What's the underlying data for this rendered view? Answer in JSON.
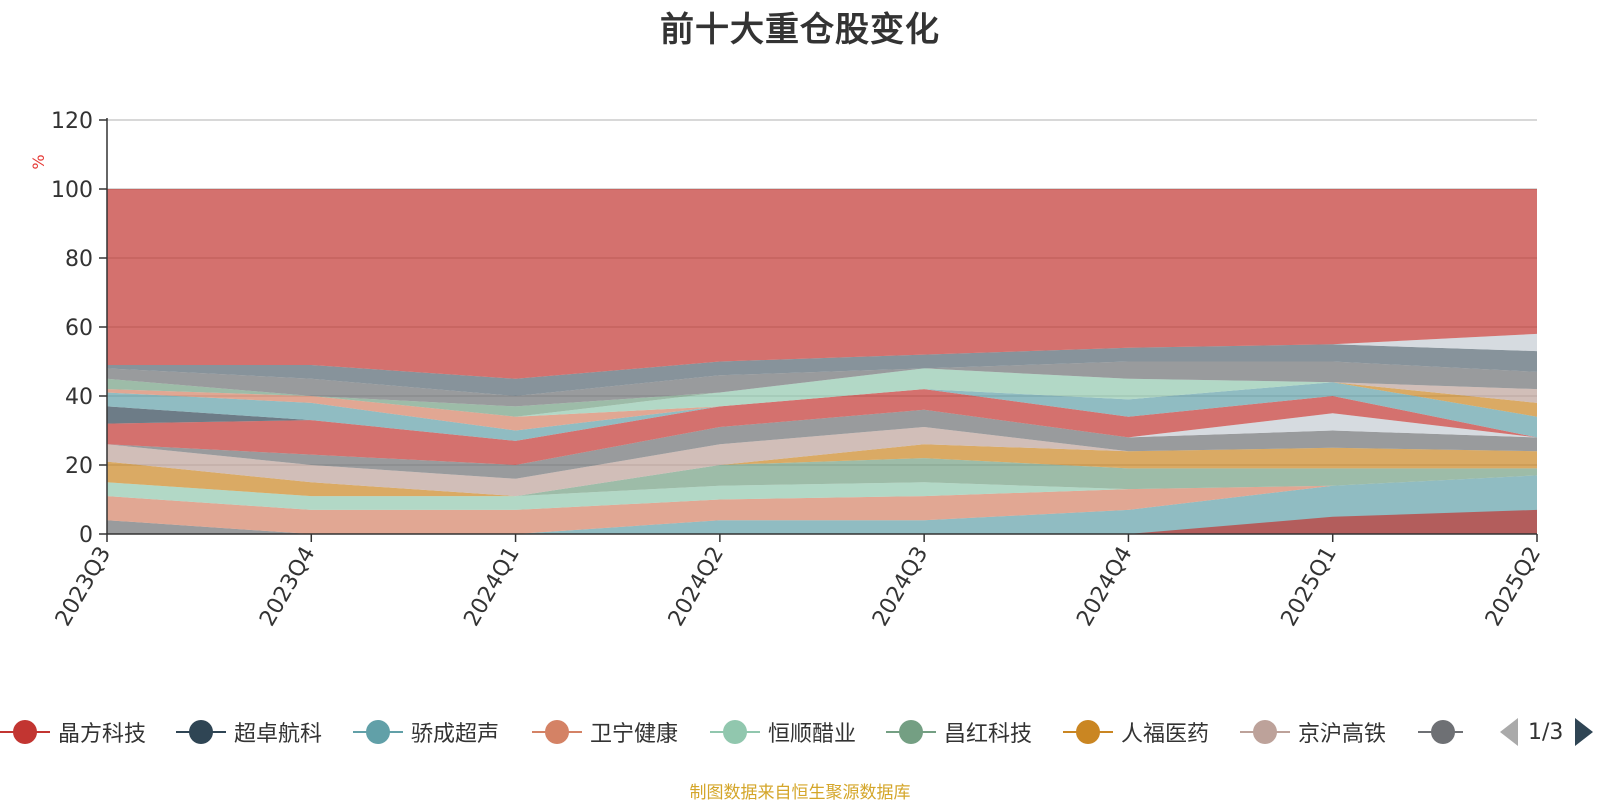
{
  "chart_data": {
    "type": "area",
    "title": "前十大重仓股变化",
    "ylabel": "%",
    "ylim": [
      0,
      120
    ],
    "yticks": [
      0,
      20,
      40,
      60,
      80,
      100,
      120
    ],
    "categories": [
      "2023Q3",
      "2023Q4",
      "2024Q1",
      "2024Q2",
      "2024Q3",
      "2024Q4",
      "2025Q1",
      "2025Q2"
    ],
    "bands": [
      {
        "color": "#6e7074",
        "lower": [
          0,
          0,
          0,
          0,
          0,
          0,
          0,
          0
        ],
        "upper": [
          4,
          0,
          0,
          0,
          0,
          0,
          0,
          0
        ]
      },
      {
        "color": "#61a0a8",
        "lower": [
          0,
          0,
          0,
          0,
          0,
          0,
          0,
          0
        ],
        "upper": [
          0,
          0,
          0,
          4,
          4,
          7,
          14,
          17
        ]
      },
      {
        "color": "#c23531",
        "lower": [
          0,
          0,
          0,
          0,
          0,
          0,
          0,
          0
        ],
        "upper": [
          0,
          0,
          0,
          0,
          0,
          0,
          5,
          7
        ]
      },
      {
        "color": "#d48265",
        "lower": [
          4,
          0,
          0,
          4,
          4,
          7,
          14,
          17
        ],
        "upper": [
          11,
          7,
          7,
          10,
          11,
          13,
          14,
          17
        ]
      },
      {
        "color": "#91c7ae",
        "lower": [
          11,
          7,
          7,
          10,
          11,
          13,
          14,
          17
        ],
        "upper": [
          15,
          11,
          11,
          14,
          15,
          13,
          14,
          17
        ]
      },
      {
        "color": "#749f83",
        "lower": [
          15,
          11,
          11,
          14,
          15,
          13,
          14,
          17
        ],
        "upper": [
          15,
          11,
          11,
          20,
          22,
          19,
          19,
          19
        ]
      },
      {
        "color": "#ca8622",
        "lower": [
          15,
          11,
          11,
          20,
          22,
          19,
          19,
          19
        ],
        "upper": [
          21,
          15,
          11,
          20,
          26,
          24,
          25,
          24
        ]
      },
      {
        "color": "#bda29a",
        "lower": [
          21,
          15,
          11,
          20,
          26,
          24,
          25,
          24
        ],
        "upper": [
          26,
          20,
          16,
          26,
          31,
          24,
          25,
          24
        ]
      },
      {
        "color": "#6e7074",
        "lower": [
          26,
          20,
          16,
          26,
          31,
          24,
          25,
          24
        ],
        "upper": [
          26,
          23,
          20,
          31,
          36,
          28,
          30,
          28
        ]
      },
      {
        "color": "#c4ccd3",
        "lower": [
          26,
          23,
          20,
          31,
          36,
          28,
          30,
          28
        ],
        "upper": [
          26,
          23,
          20,
          31,
          36,
          28,
          35,
          28
        ]
      },
      {
        "color": "#c23531",
        "lower": [
          26,
          23,
          20,
          31,
          36,
          28,
          35,
          28
        ],
        "upper": [
          32,
          33,
          27,
          37,
          42,
          34,
          40,
          28
        ]
      },
      {
        "color": "#2f4554",
        "lower": [
          32,
          33,
          27,
          37,
          42,
          34,
          40,
          28
        ],
        "upper": [
          37,
          33,
          27,
          37,
          42,
          34,
          40,
          28
        ]
      },
      {
        "color": "#61a0a8",
        "lower": [
          37,
          33,
          27,
          37,
          42,
          34,
          40,
          28
        ],
        "upper": [
          41,
          38,
          30,
          37,
          42,
          39,
          44,
          34
        ]
      },
      {
        "color": "#d48265",
        "lower": [
          41,
          38,
          30,
          37,
          42,
          39,
          44,
          34
        ],
        "upper": [
          42,
          40,
          34,
          37,
          42,
          39,
          44,
          34
        ]
      },
      {
        "color": "#91c7ae",
        "lower": [
          42,
          40,
          34,
          37,
          42,
          39,
          44,
          34
        ],
        "upper": [
          42,
          40,
          34,
          41,
          48,
          45,
          44,
          34
        ]
      },
      {
        "color": "#749f83",
        "lower": [
          42,
          40,
          34,
          41,
          48,
          45,
          44,
          34
        ],
        "upper": [
          45,
          40,
          37,
          41,
          48,
          45,
          44,
          34
        ]
      },
      {
        "color": "#ca8622",
        "lower": [
          45,
          40,
          37,
          41,
          48,
          45,
          44,
          34
        ],
        "upper": [
          45,
          40,
          37,
          41,
          48,
          45,
          44,
          38
        ]
      },
      {
        "color": "#bda29a",
        "lower": [
          45,
          40,
          37,
          41,
          48,
          45,
          44,
          38
        ],
        "upper": [
          45,
          40,
          37,
          41,
          48,
          45,
          44,
          42
        ]
      },
      {
        "color": "#6e7074",
        "lower": [
          45,
          40,
          37,
          41,
          48,
          45,
          44,
          42
        ],
        "upper": [
          48,
          45,
          40,
          46,
          48,
          50,
          50,
          47
        ]
      },
      {
        "color": "#546570",
        "lower": [
          48,
          45,
          40,
          46,
          48,
          50,
          50,
          47
        ],
        "upper": [
          49,
          49,
          45,
          50,
          52,
          54,
          55,
          53
        ]
      },
      {
        "color": "#c4ccd3",
        "lower": [
          49,
          49,
          45,
          50,
          52,
          54,
          55,
          53
        ],
        "upper": [
          49,
          49,
          45,
          50,
          52,
          54,
          55,
          58
        ]
      },
      {
        "color": "#c23531",
        "lower": [
          49,
          49,
          45,
          50,
          52,
          54,
          55,
          58
        ],
        "upper": [
          100,
          100,
          100,
          100,
          100,
          100,
          100,
          100
        ]
      }
    ],
    "legend": [
      {
        "name": "晶方科技",
        "color": "#c23531"
      },
      {
        "name": "超卓航科",
        "color": "#2f4554"
      },
      {
        "name": "骄成超声",
        "color": "#61a0a8"
      },
      {
        "name": "卫宁健康",
        "color": "#d48265"
      },
      {
        "name": "恒顺醋业",
        "color": "#91c7ae"
      },
      {
        "name": "昌红科技",
        "color": "#749f83"
      },
      {
        "name": "人福医药",
        "color": "#ca8622"
      },
      {
        "name": "京沪高铁",
        "color": "#bda29a"
      },
      {
        "name": "",
        "color": "#6e7074"
      }
    ],
    "legend_page": "1/3",
    "grid": true,
    "legend_position": "bottom"
  },
  "footnote": "制图数据来自恒生聚源数据库"
}
